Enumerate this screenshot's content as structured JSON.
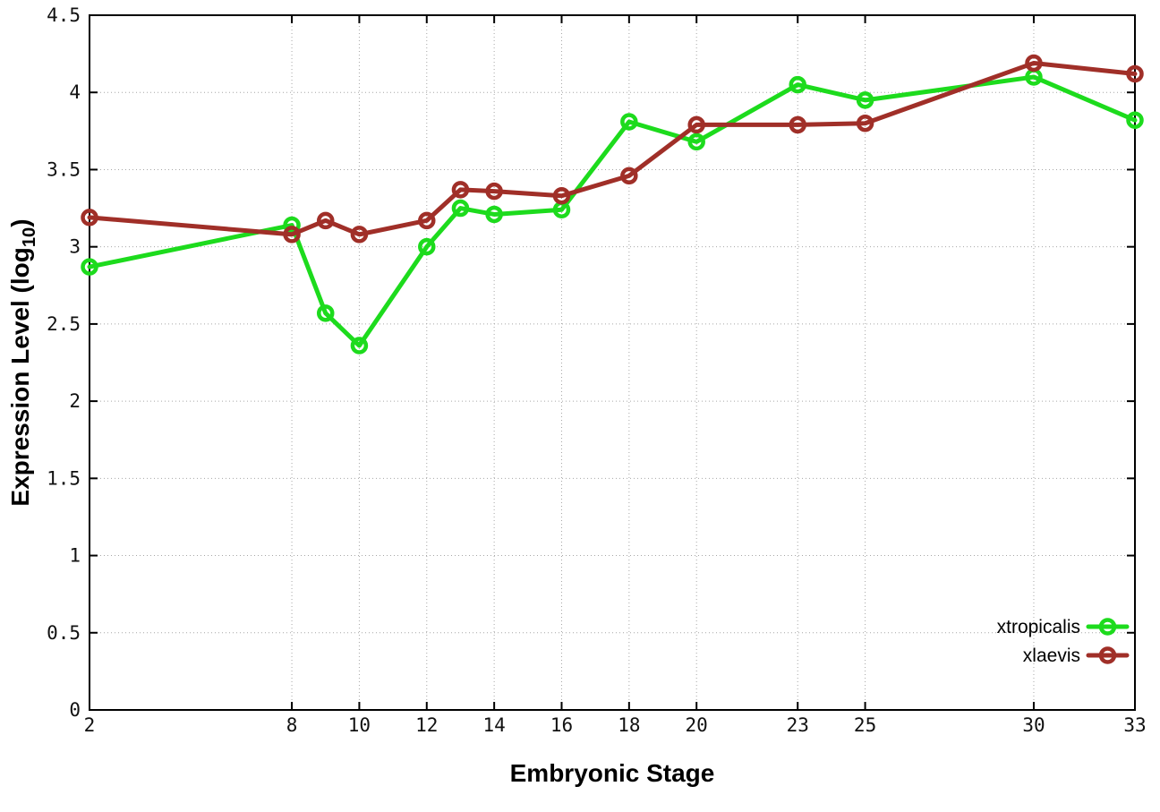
{
  "chart_data": {
    "type": "line",
    "title": "",
    "xlabel": "Embryonic Stage",
    "ylabel": "Expression Level (log10)",
    "ylabel_parts": {
      "main": "Expression Level (log",
      "sub": "10",
      "end": ")"
    },
    "x": [
      2,
      8,
      9,
      10,
      12,
      13,
      14,
      16,
      18,
      20,
      23,
      25,
      30,
      33
    ],
    "series": [
      {
        "name": "xtropicalis",
        "color": "#1ddb1d",
        "values": [
          2.87,
          3.14,
          2.57,
          2.36,
          3.0,
          3.25,
          3.21,
          3.24,
          3.81,
          3.68,
          4.05,
          3.95,
          4.1,
          3.82
        ]
      },
      {
        "name": "xlaevis",
        "color": "#a02f28",
        "values": [
          3.19,
          3.08,
          3.17,
          3.08,
          3.17,
          3.37,
          3.36,
          3.33,
          3.46,
          3.79,
          3.79,
          3.8,
          4.19,
          4.12
        ]
      }
    ],
    "xlim": [
      2,
      33
    ],
    "ylim": [
      0,
      4.5
    ],
    "xticks": [
      2,
      8,
      10,
      12,
      14,
      16,
      18,
      20,
      23,
      25,
      30,
      33
    ],
    "xtick_labels": [
      "2",
      "8",
      "10",
      "12",
      "14",
      "16",
      "18",
      "20",
      "23",
      "25",
      "30",
      "33"
    ],
    "yticks": [
      0,
      0.5,
      1,
      1.5,
      2,
      2.5,
      3,
      3.5,
      4,
      4.5
    ],
    "ytick_labels": [
      "0",
      "0.5",
      "1",
      "1.5",
      "2",
      "2.5",
      "3",
      "3.5",
      "4",
      "4.5"
    ],
    "grid": true,
    "grid_style": "dotted",
    "legend_position": "bottom-right-inside",
    "marker": "open-circle",
    "colors": {
      "background": "#ffffff",
      "border": "#000000",
      "grid": "#a6a6a6",
      "text": "#000000"
    }
  }
}
